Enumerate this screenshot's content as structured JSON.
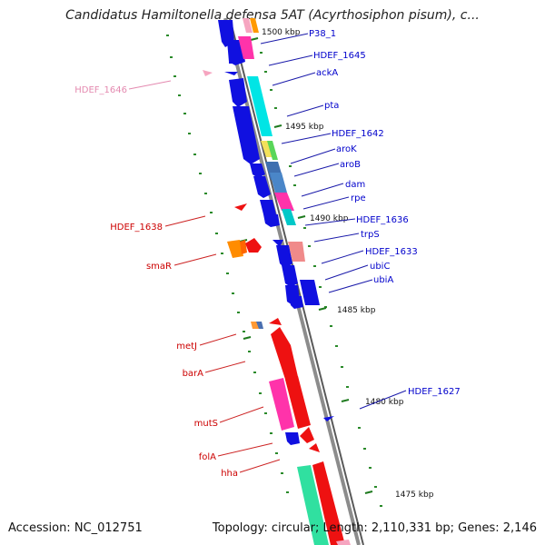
{
  "title": "Candidatus Hamiltonella defensa 5AT (Acyrthosiphon pisum), c...",
  "footer": {
    "accession_label": "Accession: NC_012751",
    "stats_label": "Topology: circular; Length: 2,110,331 bp; Genes: 2,146"
  },
  "colors": {
    "forward_label": "#0000cc",
    "reverse_label": "#cc0000",
    "pseudo_label": "#e48ab0",
    "backbone": "#7f7f7f",
    "tick_mark": "#1e7a1e"
  },
  "position_ticks": [
    "1500 kbp",
    "1495 kbp",
    "1490 kbp",
    "1485 kbp",
    "1480 kbp",
    "1475 kbp"
  ],
  "forward_labels": [
    "P38_1",
    "HDEF_1645",
    "ackA",
    "pta",
    "HDEF_1642",
    "aroK",
    "aroB",
    "dam",
    "rpe",
    "HDEF_1636",
    "trpS",
    "HDEF_1633",
    "ubiC",
    "ubiA",
    "HDEF_1627"
  ],
  "reverse_labels": [
    "HDEF_1646",
    "HDEF_1638",
    "smaR",
    "metJ",
    "barA",
    "mutS",
    "folA",
    "hha"
  ],
  "pseudo_labels": [
    "HDEF_1646"
  ]
}
